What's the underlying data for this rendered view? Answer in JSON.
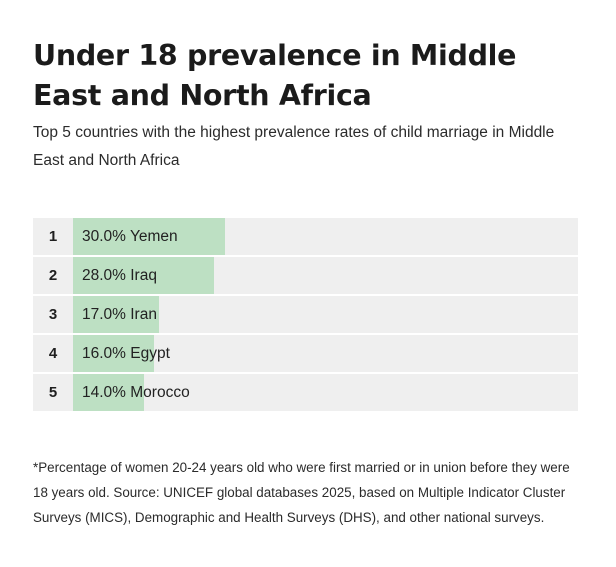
{
  "title": "Under 18 prevalence in Middle East and North Africa",
  "subtitle": "Top 5 countries with the highest prevalence rates of child marriage in Middle East and North Africa",
  "footnote": "*Percentage of women 20-24 years old who were first married or in union before they were 18 years old. Source: UNICEF global databases 2025, based on Multiple Indicator Cluster Surveys (MICS), Demographic and Health Surveys (DHS), and other national surveys.",
  "colors": {
    "bar": "#bde0c3",
    "track": "#efefef"
  },
  "chart_data": {
    "type": "bar",
    "orientation": "horizontal",
    "title": "Under 18 prevalence in Middle East and North Africa",
    "subtitle": "Top 5 countries with the highest prevalence rates of child marriage in Middle East and North Africa",
    "xlim": [
      0,
      100
    ],
    "rows": [
      {
        "rank": "1",
        "label": "30.0% Yemen",
        "country": "Yemen",
        "value": 30.0
      },
      {
        "rank": "2",
        "label": "28.0% Iraq",
        "country": "Iraq",
        "value": 28.0
      },
      {
        "rank": "3",
        "label": "17.0% Iran",
        "country": "Iran",
        "value": 17.0
      },
      {
        "rank": "4",
        "label": "16.0% Egypt",
        "country": "Egypt",
        "value": 16.0
      },
      {
        "rank": "5",
        "label": "14.0% Morocco",
        "country": "Morocco",
        "value": 14.0
      }
    ]
  }
}
